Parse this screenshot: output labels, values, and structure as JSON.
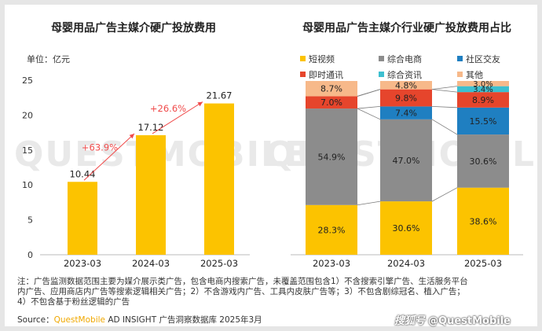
{
  "chart_data": [
    {
      "type": "bar",
      "title": "母婴用品广告主媒介硬广投放费用",
      "unit_label": "单位：亿元",
      "categories": [
        "2023-03",
        "2024-03",
        "2025-03"
      ],
      "values": [
        10.44,
        17.12,
        21.67
      ],
      "value_labels": [
        "10.44",
        "17.12",
        "21.67"
      ],
      "ylim": [
        0,
        25
      ],
      "yticks": [
        0,
        5,
        10,
        15,
        20,
        25
      ],
      "growth_labels": [
        "+63.9%",
        "+26.6%"
      ],
      "colors": {
        "bar": "#fcc300",
        "arrow": "#f04a4a",
        "growth_text": "#f04a4a"
      }
    },
    {
      "type": "bar",
      "stacked": true,
      "title": "母婴用品广告主媒介行业硬广投放费用占比",
      "categories": [
        "2023-03",
        "2024-03",
        "2025-03"
      ],
      "series": [
        {
          "name": "短视频",
          "color": "#fcc300",
          "values": [
            28.3,
            30.6,
            38.6
          ],
          "labels": [
            "28.3%",
            "30.6%",
            "38.6%"
          ]
        },
        {
          "name": "综合电商",
          "color": "#8c8c8c",
          "values": [
            54.9,
            47.0,
            30.6
          ],
          "labels": [
            "54.9%",
            "47.0%",
            "30.6%"
          ]
        },
        {
          "name": "社区交友",
          "color": "#1f7fc1",
          "values": [
            0.0,
            7.4,
            15.5
          ],
          "labels": [
            "",
            "7.4%",
            "15.5%"
          ]
        },
        {
          "name": "即时通讯",
          "color": "#e6452c",
          "values": [
            7.0,
            9.8,
            8.9
          ],
          "labels": [
            "7.0%",
            "9.8%",
            "8.9%"
          ]
        },
        {
          "name": "综合资讯",
          "color": "#3dbfd0",
          "values": [
            0.0,
            0.0,
            3.4
          ],
          "labels": [
            "",
            "",
            "3.4%"
          ]
        },
        {
          "name": "其他",
          "color": "#f7b98a",
          "values": [
            8.7,
            4.8,
            3.0
          ],
          "labels": [
            "8.7%",
            "4.8%",
            "3.0%"
          ]
        }
      ]
    }
  ],
  "notes": [
    "注：广告监测数据范围主要为媒介展示类广告，包含电商内搜索广告，未覆盖范围包含1）不含搜索引擎广告、生活服务平台",
    "内广告、应用商店内广告等搜索逻辑相关广告；2）不含游戏内广告、工具内皮肤广告等；3）不包含剧综冠名、植入广告；",
    "4）不包含基于粉丝逻辑的广告"
  ],
  "source": {
    "prefix": "Source：",
    "brand": "QuestMobile",
    "rest": " AD INSIGHT 广告洞察数据库 2025年3月"
  },
  "logo": {
    "prefix": "搜狐号",
    "handle": "@QuestMobile"
  },
  "watermark": "QUESTMOBILE"
}
